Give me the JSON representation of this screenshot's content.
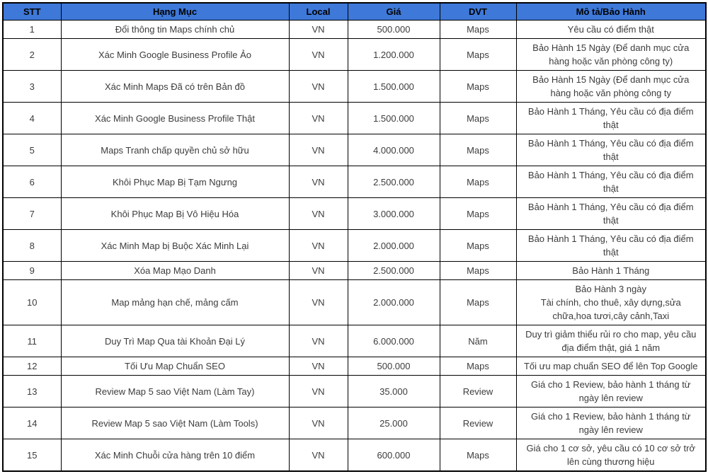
{
  "table": {
    "columns": [
      {
        "key": "stt",
        "label": "STT"
      },
      {
        "key": "item",
        "label": "Hạng Mục"
      },
      {
        "key": "local",
        "label": "Local"
      },
      {
        "key": "price",
        "label": "Giá"
      },
      {
        "key": "dvt",
        "label": "DVT"
      },
      {
        "key": "desc",
        "label": "Mô tả/Bảo Hành"
      }
    ],
    "rows": [
      {
        "stt": "1",
        "item": "Đổi thông tin Maps chính chủ",
        "local": "VN",
        "price": "500.000",
        "dvt": "Maps",
        "desc": "Yêu cầu có điểm thật"
      },
      {
        "stt": "2",
        "item": "Xác Minh Google Business Profile Ảo",
        "local": "VN",
        "price": "1.200.000",
        "dvt": "Maps",
        "desc": "Bảo Hành 15 Ngày (Để danh mục cửa hàng hoặc văn phòng công ty)"
      },
      {
        "stt": "3",
        "item": "Xác Minh Maps Đã có trên Bản đồ",
        "local": "VN",
        "price": "1.500.000",
        "dvt": "Maps",
        "desc": "Bảo Hành 15 Ngày (Để danh mục cửa hàng hoặc văn phòng công ty"
      },
      {
        "stt": "4",
        "item": "Xác Minh Google Business Profile Thật",
        "local": "VN",
        "price": "1.500.000",
        "dvt": "Maps",
        "desc": "Bảo Hành 1 Tháng, Yêu cầu có địa điểm thật"
      },
      {
        "stt": "5",
        "item": "Maps Tranh chấp quyền chủ sở hữu",
        "local": "VN",
        "price": "4.000.000",
        "dvt": "Maps",
        "desc": "Bảo Hành 1 Tháng, Yêu cầu có địa điểm thật"
      },
      {
        "stt": "6",
        "item": "Khôi Phục Map Bị Tạm Ngưng",
        "local": "VN",
        "price": "2.500.000",
        "dvt": "Maps",
        "desc": "Bảo Hành 1 Tháng, Yêu cầu có địa điểm thật"
      },
      {
        "stt": "7",
        "item": "Khôi Phục Map Bị Vô Hiệu Hóa",
        "local": "VN",
        "price": "3.000.000",
        "dvt": "Maps",
        "desc": "Bảo Hành 1 Tháng, Yêu cầu có địa điểm thật"
      },
      {
        "stt": "8",
        "item": "Xác Minh Map bị Buộc Xác Minh Lại",
        "local": "VN",
        "price": "2.000.000",
        "dvt": "Maps",
        "desc": "Bảo Hành 1 Tháng, Yêu cầu có địa điểm thật"
      },
      {
        "stt": "9",
        "item": "Xóa Map Mạo Danh",
        "local": "VN",
        "price": "2.500.000",
        "dvt": "Maps",
        "desc": "Bảo Hành 1 Tháng"
      },
      {
        "stt": "10",
        "item": "Map mảng hạn chế, mảng cấm",
        "local": "VN",
        "price": "2.000.000",
        "dvt": "Maps",
        "desc": "Bảo Hành 3 ngày\nTài chính, cho thuê, xây dựng,sửa chữa,hoa tươi,cây cảnh,Taxi"
      },
      {
        "stt": "11",
        "item": "Duy Trì Map Qua tài Khoản Đại Lý",
        "local": "VN",
        "price": "6.000.000",
        "dvt": "Năm",
        "desc": "Duy trì giảm thiểu rủi ro cho map, yêu cầu địa điểm thật, giá 1 năm"
      },
      {
        "stt": "12",
        "item": "Tối Ưu Map Chuẩn SEO",
        "local": "VN",
        "price": "500.000",
        "dvt": "Maps",
        "desc": "Tối ưu map chuẩn SEO để lên Top Google"
      },
      {
        "stt": "13",
        "item": "Review Map 5 sao Việt Nam (Làm Tay)",
        "local": "VN",
        "price": "35.000",
        "dvt": "Review",
        "desc": "Giá cho 1 Review, bảo hành 1 tháng từ ngày lên review"
      },
      {
        "stt": "14",
        "item": "Review Map 5 sao Việt Nam (Làm Tools)",
        "local": "VN",
        "price": "25.000",
        "dvt": "Review",
        "desc": "Giá cho 1 Review, bảo hành 1 tháng từ ngày lên review"
      },
      {
        "stt": "15",
        "item": "Xác Minh Chuỗi cửa hàng trên 10 điểm",
        "local": "VN",
        "price": "600.000",
        "dvt": "Maps",
        "desc": "Giá cho 1 cơ sở, yêu cầu có 10 cơ sở trở lên cùng thương hiệu"
      }
    ]
  },
  "colors": {
    "header_bg": "#3e78d8",
    "header_text": "#000000",
    "border": "#000000",
    "body_text": "#3c3c3c",
    "background": "#ffffff"
  }
}
